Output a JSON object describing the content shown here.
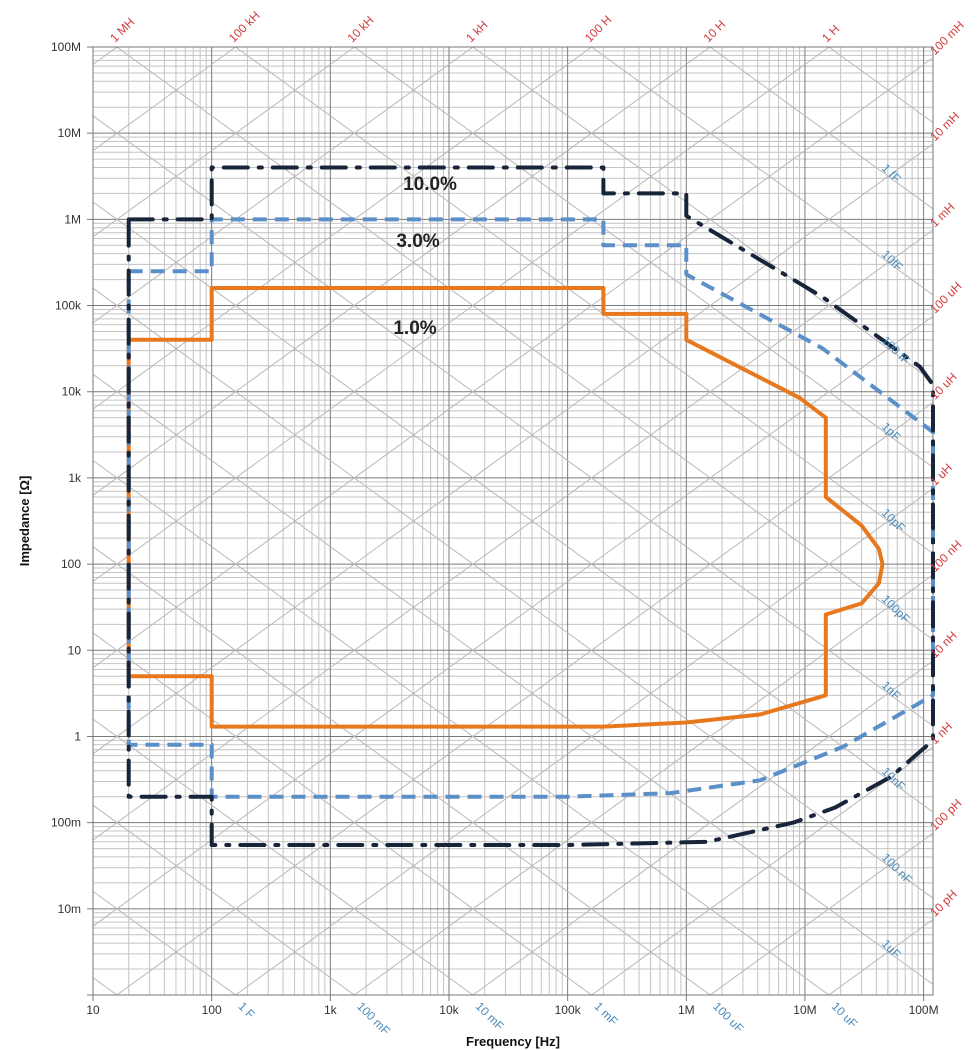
{
  "chart_data": {
    "type": "line",
    "title": "",
    "xlabel": "Frequency [Hz]",
    "ylabel": "Impedance [Ω]",
    "x_scale": "log",
    "y_scale": "log",
    "xlim": [
      10,
      120000000
    ],
    "ylim": [
      0.001,
      100000000
    ],
    "grid": true,
    "x_ticks": [
      {
        "value": 10,
        "label": "10"
      },
      {
        "value": 100,
        "label": "100"
      },
      {
        "value": 1000,
        "label": "1k"
      },
      {
        "value": 10000,
        "label": "10k"
      },
      {
        "value": 100000,
        "label": "100k"
      },
      {
        "value": 1000000,
        "label": "1M"
      },
      {
        "value": 10000000,
        "label": "10M"
      },
      {
        "value": 100000000,
        "label": "100M"
      }
    ],
    "y_ticks": [
      {
        "value": 100000000,
        "label": "100M"
      },
      {
        "value": 10000000,
        "label": "10M"
      },
      {
        "value": 1000000,
        "label": "1M"
      },
      {
        "value": 100000,
        "label": "100k"
      },
      {
        "value": 10000,
        "label": "10k"
      },
      {
        "value": 1000,
        "label": "1k"
      },
      {
        "value": 100,
        "label": "100"
      },
      {
        "value": 10,
        "label": "10"
      },
      {
        "value": 1,
        "label": "1"
      },
      {
        "value": 0.1,
        "label": "100m"
      },
      {
        "value": 0.01,
        "label": "10m"
      }
    ],
    "inductance_lines": [
      {
        "value": 1000000.0,
        "label": "1 MH"
      },
      {
        "value": 100000.0,
        "label": "100 kH"
      },
      {
        "value": 10000.0,
        "label": "10 kH"
      },
      {
        "value": 1000.0,
        "label": "1 kH"
      },
      {
        "value": 100,
        "label": "100 H"
      },
      {
        "value": 10,
        "label": "10 H"
      },
      {
        "value": 1,
        "label": "1 H"
      },
      {
        "value": 0.1,
        "label": "100 mH"
      },
      {
        "value": 0.01,
        "label": "10 mH"
      },
      {
        "value": 0.001,
        "label": "1 mH"
      },
      {
        "value": 0.0001,
        "label": "100 uH"
      },
      {
        "value": 1e-05,
        "label": "10 uH"
      },
      {
        "value": 1e-06,
        "label": "1 uH"
      },
      {
        "value": 1e-07,
        "label": "100 nH"
      },
      {
        "value": 1e-08,
        "label": "10 nH"
      },
      {
        "value": 1e-09,
        "label": "1 nH"
      },
      {
        "value": 1e-10,
        "label": "100 pH"
      },
      {
        "value": 1e-11,
        "label": "10 pH"
      }
    ],
    "capacitance_lines": [
      {
        "value": 1,
        "label": "1 F"
      },
      {
        "value": 0.1,
        "label": "100 mF"
      },
      {
        "value": 0.01,
        "label": "10 mF"
      },
      {
        "value": 0.001,
        "label": "1 mF"
      },
      {
        "value": 0.0001,
        "label": "100 uF"
      },
      {
        "value": 1e-05,
        "label": "10 uF"
      },
      {
        "value": 1e-06,
        "label": "1uF"
      },
      {
        "value": 1e-07,
        "label": "100 nF"
      },
      {
        "value": 1e-08,
        "label": "10nF"
      },
      {
        "value": 1e-09,
        "label": "1nF"
      },
      {
        "value": 1e-10,
        "label": "100pF"
      },
      {
        "value": 1e-11,
        "label": "10pF"
      },
      {
        "value": 1e-12,
        "label": "1pF"
      },
      {
        "value": 1e-13,
        "label": "100 fF"
      },
      {
        "value": 1e-14,
        "label": "10fF"
      },
      {
        "value": 1e-15,
        "label": "1 fF"
      }
    ],
    "series": [
      {
        "name": "10.0%",
        "color": "#17243a",
        "style": "dash-dot",
        "x": [
          20,
          100,
          100,
          200000,
          200000,
          1000000,
          1000000,
          14000000,
          93000000,
          120000000,
          120000000,
          53000000,
          18000000,
          8000000,
          1500000,
          100000,
          100,
          100,
          20,
          20
        ],
        "y": [
          1000000,
          1000000,
          4000000,
          4000000,
          2000000,
          2000000,
          1100000,
          126000,
          19500,
          12000,
          0.9,
          0.34,
          0.15,
          0.1,
          0.06,
          0.055,
          0.055,
          0.2,
          0.2,
          1000000
        ]
      },
      {
        "name": "3.0%",
        "color": "#5b8fc9",
        "style": "dashed",
        "x": [
          20,
          100,
          100,
          200000,
          200000,
          1000000,
          1000000,
          14000000,
          120000000,
          120000000,
          21000000,
          4200000,
          740000,
          100000,
          100,
          100,
          20,
          20
        ],
        "y": [
          250000,
          250000,
          1000000,
          1000000,
          500000,
          500000,
          230000,
          32000,
          3400,
          3,
          0.76,
          0.31,
          0.22,
          0.2,
          0.2,
          0.8,
          0.8,
          250000
        ]
      },
      {
        "name": "1.0%",
        "color": "#e8781e",
        "style": "solid",
        "x": [
          20,
          100,
          100,
          200000,
          200000,
          1000000,
          1000000,
          9000000,
          15000000,
          15000000,
          30000000,
          42000000,
          45000000,
          42000000,
          30000000,
          15000000,
          15000000,
          4200000,
          1000000,
          200000,
          100,
          100,
          20,
          20
        ],
        "y": [
          40000,
          40000,
          160000,
          160000,
          80000,
          80000,
          40000,
          8500,
          5000,
          600,
          280,
          150,
          100,
          60,
          35,
          26,
          3,
          1.8,
          1.45,
          1.3,
          1.3,
          5,
          5,
          40000
        ]
      }
    ]
  }
}
